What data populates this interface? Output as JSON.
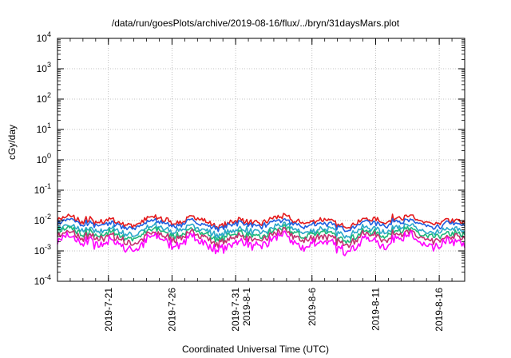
{
  "chart_data": {
    "type": "line",
    "title": "/data/run/goesPlots/archive/2019-08-16/flux/../bryn/31daysMars.plot",
    "xlabel": "Coordinated Universal Time (UTC)",
    "ylabel": "cGy/day",
    "yscale": "log",
    "ylim": [
      0.0001,
      10000
    ],
    "xlim": [
      "2019-07-17",
      "2019-08-18"
    ],
    "grid": true,
    "y_ticks": [
      {
        "base": "10",
        "exp": "4"
      },
      {
        "base": "10",
        "exp": "3"
      },
      {
        "base": "10",
        "exp": "2"
      },
      {
        "base": "10",
        "exp": "1"
      },
      {
        "base": "10",
        "exp": "0"
      },
      {
        "base": "10",
        "exp": "-1"
      },
      {
        "base": "10",
        "exp": "-2"
      },
      {
        "base": "10",
        "exp": "-3"
      },
      {
        "base": "10",
        "exp": "-4"
      }
    ],
    "x_ticks": [
      {
        "date": "2019-07-21",
        "lines": [
          "2019-7-21"
        ]
      },
      {
        "date": "2019-07-26",
        "lines": [
          "2019-7-26"
        ]
      },
      {
        "date": "2019-07-31",
        "lines": [
          "2019-7-31",
          "2019-8-1"
        ]
      },
      {
        "date": "2019-08-06",
        "lines": [
          "2019-8-6"
        ]
      },
      {
        "date": "2019-08-11",
        "lines": [
          "2019-8-11"
        ]
      },
      {
        "date": "2019-08-16",
        "lines": [
          "2019-8-16"
        ]
      }
    ],
    "series": [
      {
        "color": "#e41a1c",
        "level": 0.0095,
        "amp": 0.17
      },
      {
        "color": "#1f5fe0",
        "level": 0.0075,
        "amp": 0.16
      },
      {
        "color": "#2aa7c9",
        "level": 0.0048,
        "amp": 0.18
      },
      {
        "color": "#1fb87a",
        "level": 0.0036,
        "amp": 0.2
      },
      {
        "color": "#c43070",
        "level": 0.0027,
        "amp": 0.22
      },
      {
        "color": "#ff00ff",
        "level": 0.0018,
        "amp": 0.28
      }
    ]
  }
}
